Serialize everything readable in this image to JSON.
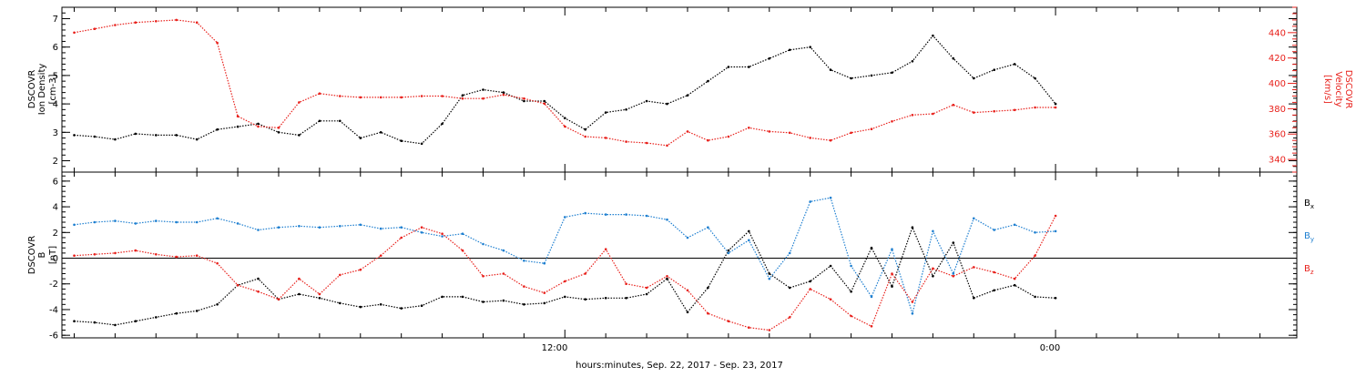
{
  "colors": {
    "black": "#000000",
    "red": "#e8211c",
    "blue": "#1e7fd0"
  },
  "xaxis": {
    "label": "hours:minutes, Sep. 22, 2017 - Sep. 23, 2017",
    "ticks": [
      {
        "hour": 12,
        "label": "12:00"
      },
      {
        "hour": 24,
        "label": "0:00"
      }
    ],
    "range_hours": [
      -0.3,
      29.9
    ]
  },
  "chart_data": [
    {
      "type": "scatter",
      "title": "",
      "ylabel_lines": [
        "DSCOVR",
        "Ion Density",
        "[cm-3]"
      ],
      "ylim": [
        1.6,
        7.4
      ],
      "yticks": [
        2,
        3,
        4,
        5,
        6,
        7
      ],
      "grid": false,
      "right_axis": {
        "label_lines": [
          "DSCOVR",
          "Velocity",
          "[km/s]"
        ],
        "ylim": [
          330,
          460
        ],
        "yticks": [
          340,
          360,
          380,
          400,
          420,
          440
        ],
        "color": "#e8211c"
      },
      "series": [
        {
          "color": "#000000",
          "axis": "left",
          "x": [
            0.0,
            0.5,
            1.0,
            1.5,
            2.0,
            2.5,
            3.0,
            3.5,
            4.0,
            4.5,
            5.0,
            5.5,
            6.0,
            6.5,
            7.0,
            7.5,
            8.0,
            8.5,
            9.0,
            9.5,
            10.0,
            10.5,
            11.0,
            11.5,
            12.0,
            12.5,
            13.0,
            13.5,
            14.0,
            14.5,
            15.0,
            15.5,
            16.0,
            16.5,
            17.0,
            17.5,
            18.0,
            18.5,
            19.0,
            19.5,
            20.0,
            20.5,
            21.0,
            21.5,
            22.0,
            22.5,
            23.0,
            23.5,
            24.0
          ],
          "y": [
            2.9,
            2.85,
            2.75,
            2.95,
            2.9,
            2.9,
            2.75,
            3.1,
            3.2,
            3.3,
            3.0,
            2.9,
            3.4,
            3.4,
            2.8,
            3.0,
            2.7,
            2.6,
            3.3,
            4.3,
            4.5,
            4.4,
            4.1,
            4.1,
            3.5,
            3.1,
            3.7,
            3.8,
            4.1,
            4.0,
            4.3,
            4.8,
            5.3,
            5.3,
            5.6,
            5.9,
            6.0,
            5.2,
            4.9,
            5.0,
            5.1,
            5.5,
            6.4,
            5.6,
            4.9,
            5.2,
            5.4,
            4.9,
            4.0
          ]
        },
        {
          "color": "#e8211c",
          "axis": "right",
          "x": [
            0.0,
            0.5,
            1.0,
            1.5,
            2.0,
            2.5,
            3.0,
            3.5,
            4.0,
            4.5,
            5.0,
            5.5,
            6.0,
            6.5,
            7.0,
            7.5,
            8.0,
            8.5,
            9.0,
            9.5,
            10.0,
            10.5,
            11.0,
            11.5,
            12.0,
            12.5,
            13.0,
            13.5,
            14.0,
            14.5,
            15.0,
            15.5,
            16.0,
            16.5,
            17.0,
            17.5,
            18.0,
            18.5,
            19.0,
            19.5,
            20.0,
            20.5,
            21.0,
            21.5,
            22.0,
            22.5,
            23.0,
            23.5,
            24.0
          ],
          "y": [
            440,
            443,
            446,
            448,
            449,
            450,
            448,
            432,
            374,
            366,
            365,
            385,
            392,
            390,
            389,
            389,
            389,
            390,
            390,
            388,
            388,
            391,
            388,
            384,
            366,
            358,
            357,
            354,
            353,
            351,
            362,
            355,
            358,
            365,
            362,
            361,
            357,
            355,
            361,
            364,
            370,
            375,
            376,
            383,
            377,
            378,
            379,
            381,
            381
          ]
        }
      ]
    },
    {
      "type": "scatter",
      "title": "",
      "ylabel_lines": [
        "DSCOVR",
        "B",
        "[nT]"
      ],
      "ylim": [
        -6.2,
        6.7
      ],
      "yticks": [
        -6,
        -4,
        -2,
        0,
        2,
        4,
        6
      ],
      "grid": false,
      "zero_line": true,
      "series": [
        {
          "name": "Bx",
          "color": "#000000",
          "x": [
            0.0,
            0.5,
            1.0,
            1.5,
            2.0,
            2.5,
            3.0,
            3.5,
            4.0,
            4.5,
            5.0,
            5.5,
            6.0,
            6.5,
            7.0,
            7.5,
            8.0,
            8.5,
            9.0,
            9.5,
            10.0,
            10.5,
            11.0,
            11.5,
            12.0,
            12.5,
            13.0,
            13.5,
            14.0,
            14.5,
            15.0,
            15.5,
            16.0,
            16.5,
            17.0,
            17.5,
            18.0,
            18.5,
            19.0,
            19.5,
            20.0,
            20.5,
            21.0,
            21.5,
            22.0,
            22.5,
            23.0,
            23.5,
            24.0
          ],
          "y": [
            -4.9,
            -5.0,
            -5.2,
            -4.9,
            -4.6,
            -4.3,
            -4.1,
            -3.6,
            -2.1,
            -1.6,
            -3.2,
            -2.8,
            -3.1,
            -3.5,
            -3.8,
            -3.6,
            -3.9,
            -3.7,
            -3.0,
            -3.0,
            -3.4,
            -3.3,
            -3.6,
            -3.5,
            -3.0,
            -3.2,
            -3.1,
            -3.1,
            -2.8,
            -1.6,
            -4.2,
            -2.3,
            0.6,
            2.1,
            -1.2,
            -2.3,
            -1.8,
            -0.6,
            -2.6,
            0.8,
            -2.2,
            2.4,
            -1.4,
            1.2,
            -3.1,
            -2.5,
            -2.1,
            -3.0,
            -3.1
          ]
        },
        {
          "name": "By",
          "color": "#1e7fd0",
          "x": [
            0.0,
            0.5,
            1.0,
            1.5,
            2.0,
            2.5,
            3.0,
            3.5,
            4.0,
            4.5,
            5.0,
            5.5,
            6.0,
            6.5,
            7.0,
            7.5,
            8.0,
            8.5,
            9.0,
            9.5,
            10.0,
            10.5,
            11.0,
            11.5,
            12.0,
            12.5,
            13.0,
            13.5,
            14.0,
            14.5,
            15.0,
            15.5,
            16.0,
            16.5,
            17.0,
            17.5,
            18.0,
            18.5,
            19.0,
            19.5,
            20.0,
            20.5,
            21.0,
            21.5,
            22.0,
            22.5,
            23.0,
            23.5,
            24.0
          ],
          "y": [
            2.6,
            2.8,
            2.9,
            2.7,
            2.9,
            2.8,
            2.8,
            3.1,
            2.7,
            2.2,
            2.4,
            2.5,
            2.4,
            2.5,
            2.6,
            2.3,
            2.4,
            2.0,
            1.7,
            1.9,
            1.1,
            0.6,
            -0.2,
            -0.4,
            3.2,
            3.5,
            3.4,
            3.4,
            3.3,
            3.0,
            1.6,
            2.4,
            0.4,
            1.4,
            -1.6,
            0.4,
            4.4,
            4.7,
            -0.6,
            -3.0,
            0.7,
            -4.3,
            2.1,
            -1.2,
            3.1,
            2.2,
            2.6,
            2.0,
            2.1
          ]
        },
        {
          "name": "Bz",
          "color": "#e8211c",
          "x": [
            0.0,
            0.5,
            1.0,
            1.5,
            2.0,
            2.5,
            3.0,
            3.5,
            4.0,
            4.5,
            5.0,
            5.5,
            6.0,
            6.5,
            7.0,
            7.5,
            8.0,
            8.5,
            9.0,
            9.5,
            10.0,
            10.5,
            11.0,
            11.5,
            12.0,
            12.5,
            13.0,
            13.5,
            14.0,
            14.5,
            15.0,
            15.5,
            16.0,
            16.5,
            17.0,
            17.5,
            18.0,
            18.5,
            19.0,
            19.5,
            20.0,
            20.5,
            21.0,
            21.5,
            22.0,
            22.5,
            23.0,
            23.5,
            24.0
          ],
          "y": [
            0.2,
            0.3,
            0.4,
            0.6,
            0.3,
            0.1,
            0.2,
            -0.4,
            -2.1,
            -2.6,
            -3.2,
            -1.6,
            -2.8,
            -1.3,
            -0.9,
            0.2,
            1.6,
            2.4,
            1.9,
            0.6,
            -1.4,
            -1.2,
            -2.2,
            -2.7,
            -1.8,
            -1.2,
            0.7,
            -2.0,
            -2.3,
            -1.4,
            -2.5,
            -4.3,
            -4.9,
            -5.4,
            -5.6,
            -4.6,
            -2.4,
            -3.2,
            -4.5,
            -5.3,
            -1.2,
            -3.4,
            -0.8,
            -1.4,
            -0.7,
            -1.1,
            -1.6,
            0.2,
            3.3
          ]
        }
      ],
      "legend": {
        "placement": "right",
        "entries": [
          {
            "base": "B",
            "sub": "x",
            "color": "#000000"
          },
          {
            "base": "B",
            "sub": "y",
            "color": "#1e7fd0"
          },
          {
            "base": "B",
            "sub": "z",
            "color": "#e8211c"
          }
        ]
      }
    }
  ]
}
